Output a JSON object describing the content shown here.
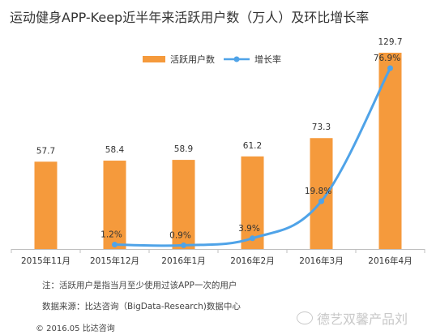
{
  "chart_data": {
    "type": "bar",
    "title": "运动健身APP-Keep近半年来活跃用户数（万人）及环比增长率",
    "categories": [
      "2015年11月",
      "2015年12月",
      "2016年1月",
      "2016年2月",
      "2016年3月",
      "2016年4月"
    ],
    "series": [
      {
        "name": "活跃用户数",
        "type": "bar",
        "values": [
          57.7,
          58.4,
          58.9,
          61.2,
          73.3,
          129.7
        ],
        "labels": [
          "57.7",
          "58.4",
          "58.9",
          "61.2",
          "73.3",
          "129.7"
        ]
      },
      {
        "name": "增长率",
        "type": "line",
        "values": [
          null,
          1.2,
          0.9,
          3.9,
          19.8,
          76.9
        ],
        "labels": [
          null,
          "1.2%",
          "0.9%",
          "3.9%",
          "19.8%",
          "76.9%"
        ]
      }
    ],
    "colors": {
      "bar": "#f59a3c",
      "line": "#4fa3e8"
    },
    "legend": "top-right"
  },
  "notes": {
    "note": "注：活跃用户是指当月至少使用过该APP一次的用户",
    "source": "数据来源：比达咨询（BigData-Research)数据中心",
    "copyright": "© 2016.05  比达咨询"
  },
  "watermark": {
    "icon": "wechat-icon",
    "text": "德艺双馨产品刘"
  }
}
